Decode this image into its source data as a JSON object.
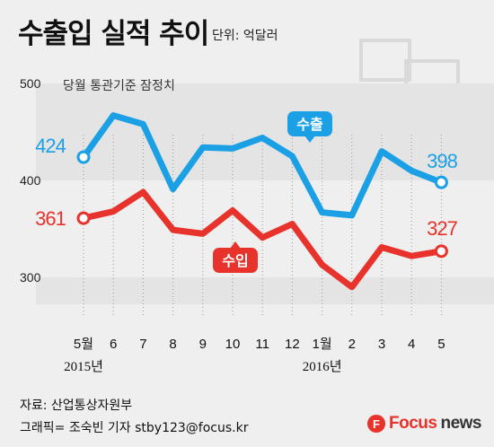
{
  "title": "수출입 실적 추이",
  "unit": "단위: 억달러",
  "note": "당월 통관기준 잠정치",
  "chart_data": {
    "type": "line",
    "categories": [
      "5월",
      "6",
      "7",
      "8",
      "9",
      "10",
      "11",
      "12",
      "1월",
      "2",
      "3",
      "4",
      "5"
    ],
    "year_labels": [
      {
        "text": "2015년",
        "index": 0
      },
      {
        "text": "2016년",
        "index": 8
      }
    ],
    "series": [
      {
        "name": "수출",
        "values": [
          424,
          467,
          458,
          391,
          434,
          433,
          444,
          425,
          367,
          364,
          430,
          410,
          398
        ],
        "color": "#1ba0e6"
      },
      {
        "name": "수입",
        "values": [
          361,
          368,
          388,
          349,
          345,
          369,
          341,
          355,
          313,
          290,
          331,
          322,
          327
        ],
        "color": "#e8322c"
      }
    ],
    "endpoint_labels": {
      "export_start": "424",
      "export_end": "398",
      "import_start": "361",
      "import_end": "327"
    },
    "yticks": [
      500,
      400,
      300
    ],
    "ylim": [
      270,
      510
    ],
    "grid": "horizontal bands"
  },
  "footer": {
    "source": "자료: 산업통상자원부",
    "credit": "그래픽= 조숙빈 기자 stby123@focus.kr"
  },
  "logo": {
    "mark": "F",
    "text_focus": "Focus",
    "text_news": "news"
  },
  "colors": {
    "export": "#1ba0e6",
    "import": "#e8322c",
    "background": "#efefef"
  }
}
